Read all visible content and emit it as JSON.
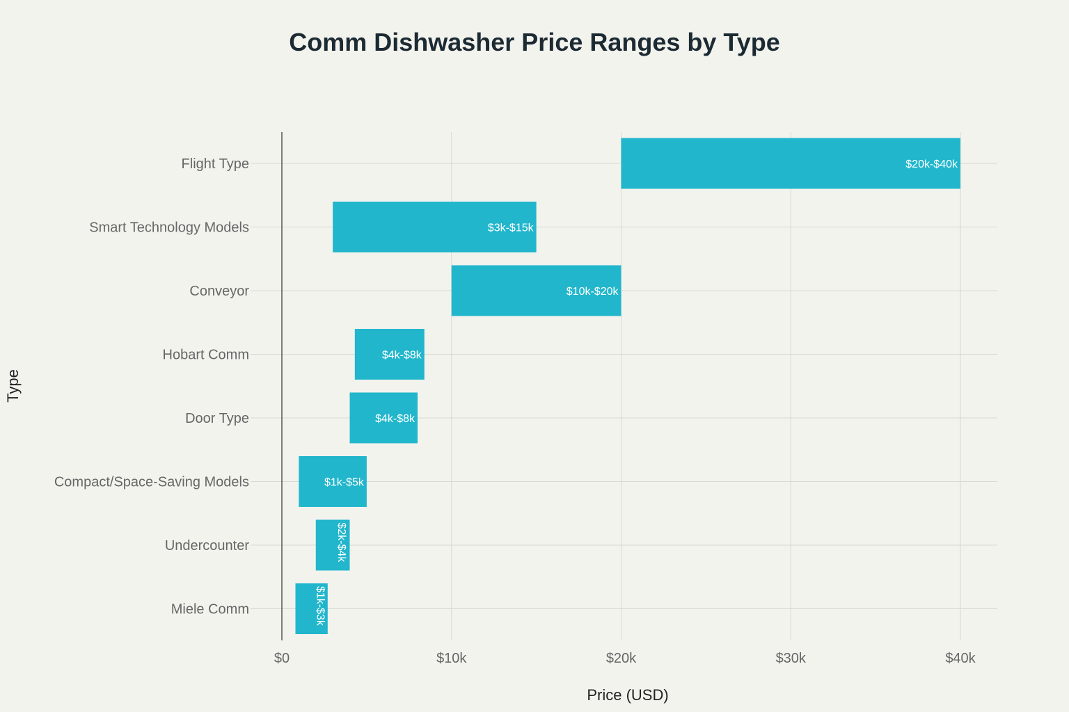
{
  "chart_data": {
    "type": "bar",
    "orientation": "horizontal",
    "subtype": "floating-range",
    "title": "Comm Dishwasher Price Ranges by Type",
    "xlabel": "Price (USD)",
    "ylabel": "Type",
    "xlim": [
      0,
      42000
    ],
    "xticks": [
      0,
      10000,
      20000,
      30000,
      40000
    ],
    "xtick_labels": [
      "$0",
      "$10k",
      "$20k",
      "$30k",
      "$40k"
    ],
    "grid": true,
    "legend": "none",
    "bar_color": "#21b6cc",
    "categories": [
      "Flight Type",
      "Smart Technology Models",
      "Conveyor",
      "Hobart Comm",
      "Door Type",
      "Compact/Space-Saving Models",
      "Undercounter",
      "Miele Comm"
    ],
    "start": [
      20000,
      3000,
      10000,
      4300,
      4000,
      1000,
      2000,
      800
    ],
    "end": [
      40000,
      15000,
      20000,
      8400,
      8000,
      5000,
      4000,
      2700
    ],
    "labels": [
      "$20k-$40k",
      "$3k-$15k",
      "$10k-$20k",
      "$4k-$8k",
      "$4k-$8k",
      "$1k-$5k",
      "$2k-$4k",
      "$1k-$3k"
    ]
  },
  "colors": {
    "background": "#f3f3ee",
    "grid": "#d8d8d4",
    "axis_line": "#555555",
    "tick_text": "#666666",
    "title_text": "#1c2a33",
    "bar": "#21b6cc",
    "bar_label": "#ffffff"
  }
}
